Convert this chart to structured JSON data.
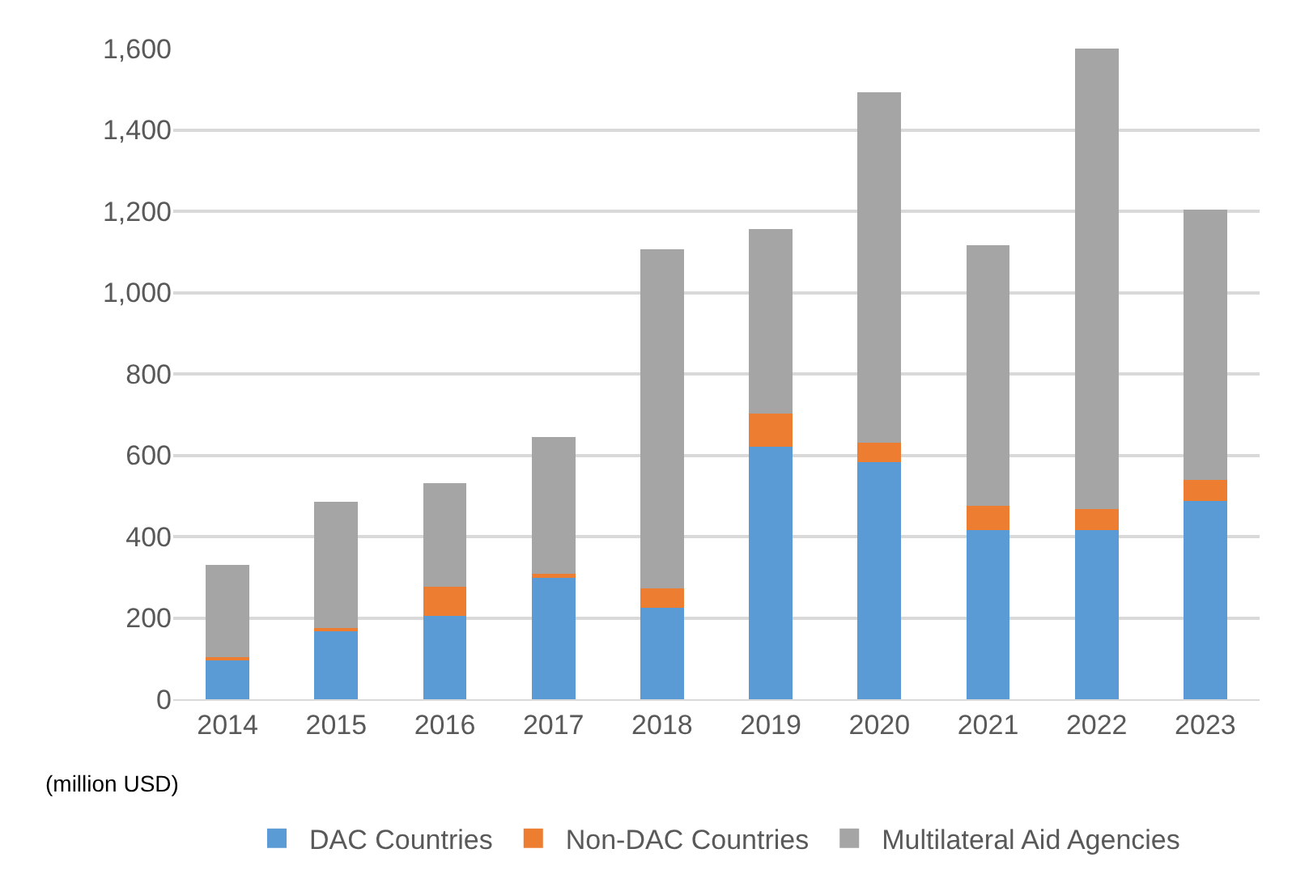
{
  "chart_data": {
    "type": "bar",
    "stacked": true,
    "categories": [
      "2014",
      "2015",
      "2016",
      "2017",
      "2018",
      "2019",
      "2020",
      "2021",
      "2022",
      "2023"
    ],
    "series": [
      {
        "name": "DAC Countries",
        "color": "#5b9bd5",
        "values": [
          97,
          171,
          204,
          301,
          225,
          620,
          584,
          415,
          415,
          487
        ]
      },
      {
        "name": "Non-DAC Countries",
        "color": "#ed7d31",
        "values": [
          7,
          5,
          72,
          7,
          47,
          83,
          47,
          60,
          52,
          52
        ]
      },
      {
        "name": "Multilateral Aid Agencies",
        "color": "#a5a5a5",
        "values": [
          227,
          309,
          256,
          337,
          835,
          454,
          861,
          642,
          1133,
          665
        ]
      }
    ],
    "ylim": [
      0,
      1600
    ],
    "yticks": [
      {
        "value": 0,
        "label": "0"
      },
      {
        "value": 200,
        "label": "200"
      },
      {
        "value": 400,
        "label": "400"
      },
      {
        "value": 600,
        "label": "600"
      },
      {
        "value": 800,
        "label": "800"
      },
      {
        "value": 1000,
        "label": "1,000"
      },
      {
        "value": 1200,
        "label": "1,200"
      },
      {
        "value": 1400,
        "label": "1,400"
      },
      {
        "value": 1600,
        "label": "1,600"
      }
    ],
    "grid": "y",
    "legend": "bottom",
    "annotations": [
      "(million USD)"
    ]
  }
}
